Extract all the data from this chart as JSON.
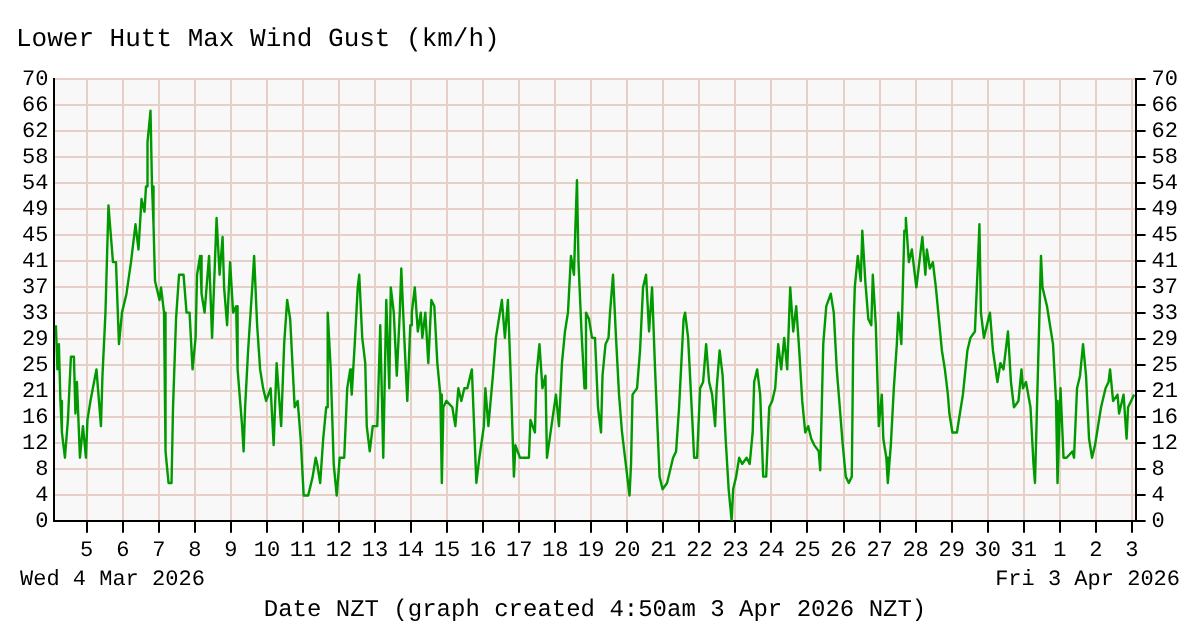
{
  "chart_data": {
    "type": "line",
    "title": "Lower Hutt Max Wind Gust (km/h)",
    "xlabel": "Date NZT (graph created 4:50am 3 Apr 2026 NZT)",
    "annotations": [
      "Wed 4 Mar 2026",
      "Fri 3 Apr 2026"
    ],
    "xlim": [
      "2026-03-04T02:30",
      "2026-04-03T02:30"
    ],
    "xticks": [
      {
        "value": "2026-03-05",
        "label": "5"
      },
      {
        "value": "2026-03-06",
        "label": "6"
      },
      {
        "value": "2026-03-07",
        "label": "7"
      },
      {
        "value": "2026-03-08",
        "label": "8"
      },
      {
        "value": "2026-03-09",
        "label": "9"
      },
      {
        "value": "2026-03-10",
        "label": "10"
      },
      {
        "value": "2026-03-11",
        "label": "11"
      },
      {
        "value": "2026-03-12",
        "label": "12"
      },
      {
        "value": "2026-03-13",
        "label": "13"
      },
      {
        "value": "2026-03-14",
        "label": "14"
      },
      {
        "value": "2026-03-15",
        "label": "15"
      },
      {
        "value": "2026-03-16",
        "label": "16"
      },
      {
        "value": "2026-03-17",
        "label": "17"
      },
      {
        "value": "2026-03-18",
        "label": "18"
      },
      {
        "value": "2026-03-19",
        "label": "19"
      },
      {
        "value": "2026-03-20",
        "label": "20"
      },
      {
        "value": "2026-03-21",
        "label": "21"
      },
      {
        "value": "2026-03-22",
        "label": "22"
      },
      {
        "value": "2026-03-23",
        "label": "23"
      },
      {
        "value": "2026-03-24",
        "label": "24"
      },
      {
        "value": "2026-03-25",
        "label": "25"
      },
      {
        "value": "2026-03-26",
        "label": "26"
      },
      {
        "value": "2026-03-27",
        "label": "27"
      },
      {
        "value": "2026-03-28",
        "label": "28"
      },
      {
        "value": "2026-03-29",
        "label": "29"
      },
      {
        "value": "2026-03-30",
        "label": "30"
      },
      {
        "value": "2026-03-31",
        "label": "31"
      },
      {
        "value": "2026-04-01",
        "label": "1"
      },
      {
        "value": "2026-04-02",
        "label": "2"
      },
      {
        "value": "2026-04-03",
        "label": "3"
      }
    ],
    "ylim": [
      0,
      70
    ],
    "yticks": [
      0,
      {
        "value": 4.12,
        "label": "4"
      },
      {
        "value": 8.24,
        "label": "8"
      },
      {
        "value": 12.35,
        "label": "12"
      },
      {
        "value": 16.47,
        "label": "16"
      },
      {
        "value": 20.59,
        "label": "21"
      },
      {
        "value": 24.71,
        "label": "25"
      },
      {
        "value": 28.82,
        "label": "29"
      },
      {
        "value": 32.94,
        "label": "33"
      },
      {
        "value": 37.06,
        "label": "37"
      },
      {
        "value": 41.18,
        "label": "41"
      },
      {
        "value": 45.29,
        "label": "45"
      },
      {
        "value": 49.41,
        "label": "49"
      },
      {
        "value": 53.53,
        "label": "54"
      },
      {
        "value": 57.65,
        "label": "58"
      },
      {
        "value": 61.76,
        "label": "62"
      },
      {
        "value": 65.88,
        "label": "66"
      },
      70
    ],
    "y2lim": [
      0,
      70
    ],
    "y2ticks": [
      0,
      {
        "value": 4.12,
        "label": "4"
      },
      {
        "value": 8.24,
        "label": "8"
      },
      {
        "value": 12.35,
        "label": "12"
      },
      {
        "value": 16.47,
        "label": "16"
      },
      {
        "value": 20.59,
        "label": "21"
      },
      {
        "value": 24.71,
        "label": "25"
      },
      {
        "value": 28.82,
        "label": "29"
      },
      {
        "value": 32.94,
        "label": "33"
      },
      {
        "value": 37.06,
        "label": "37"
      },
      {
        "value": 41.18,
        "label": "41"
      },
      {
        "value": 45.29,
        "label": "45"
      },
      {
        "value": 49.41,
        "label": "49"
      },
      {
        "value": 53.53,
        "label": "54"
      },
      {
        "value": 57.65,
        "label": "58"
      },
      {
        "value": 61.76,
        "label": "62"
      },
      {
        "value": 65.88,
        "label": "66"
      },
      70
    ],
    "grid": true,
    "marker": "none",
    "series": [
      {
        "color": "#009900",
        "x": [
          "2026-03-04T03:30",
          "2026-03-04T04:30",
          "2026-03-04T05:30",
          "2026-03-04T06:30",
          "2026-03-04T07:30",
          "2026-03-04T09:30",
          "2026-03-04T11:30",
          "2026-03-04T13:30",
          "2026-03-04T15:30",
          "2026-03-04T16:30",
          "2026-03-04T17:30",
          "2026-03-04T19:30",
          "2026-03-04T21:30",
          "2026-03-04T23:30",
          "2026-03-05T00:30",
          "2026-03-05T02:30",
          "2026-03-05T06:30",
          "2026-03-05T09:30",
          "2026-03-05T10:30",
          "2026-03-05T12:30",
          "2026-03-05T14:30",
          "2026-03-05T17:30",
          "2026-03-05T19:30",
          "2026-03-05T21:30",
          "2026-03-05T23:30",
          "2026-03-06T02:30",
          "2026-03-06T05:30",
          "2026-03-06T08:30",
          "2026-03-06T10:30",
          "2026-03-06T12:30",
          "2026-03-06T14:30",
          "2026-03-06T15:30",
          "2026-03-06T16:30",
          "2026-03-06T18:30",
          "2026-03-06T19:30",
          "2026-03-06T20:30",
          "2026-03-06T21:30",
          "2026-03-07T00:30",
          "2026-03-07T01:30",
          "2026-03-07T03:30",
          "2026-03-07T04:30",
          "2026-03-07T06:30",
          "2026-03-07T08:30",
          "2026-03-07T09:30",
          "2026-03-07T11:30",
          "2026-03-07T13:30",
          "2026-03-07T16:30",
          "2026-03-07T18:30",
          "2026-03-07T20:30",
          "2026-03-07T22:30",
          "2026-03-08T00:30",
          "2026-03-08T01:30",
          "2026-03-08T03:30",
          "2026-03-08T04:30",
          "2026-03-08T06:30",
          "2026-03-08T09:30",
          "2026-03-08T11:30",
          "2026-03-08T14:30",
          "2026-03-08T16:30",
          "2026-03-08T18:30",
          "2026-03-08T19:30",
          "2026-03-08T21:30",
          "2026-03-08T23:30",
          "2026-03-09T01:30",
          "2026-03-09T03:30",
          "2026-03-09T04:30",
          "2026-03-09T07:30",
          "2026-03-09T08:30",
          "2026-03-09T09:30",
          "2026-03-09T11:30",
          "2026-03-09T14:30",
          "2026-03-09T15:30",
          "2026-03-09T17:30",
          "2026-03-09T19:30",
          "2026-03-09T21:30",
          "2026-03-09T23:30",
          "2026-03-10T02:30",
          "2026-03-10T04:30",
          "2026-03-10T06:30",
          "2026-03-10T09:30",
          "2026-03-10T11:30",
          "2026-03-10T13:30",
          "2026-03-10T15:30",
          "2026-03-10T18:30",
          "2026-03-10T20:30",
          "2026-03-10T22:30",
          "2026-03-11T00:30",
          "2026-03-11T03:30",
          "2026-03-11T06:30",
          "2026-03-11T08:30",
          "2026-03-11T09:30",
          "2026-03-11T11:30",
          "2026-03-11T13:30",
          "2026-03-11T15:30",
          "2026-03-11T16:30",
          "2026-03-11T18:30",
          "2026-03-11T20:30",
          "2026-03-11T22:30",
          "2026-03-12T00:30",
          "2026-03-12T03:30",
          "2026-03-12T05:30",
          "2026-03-12T07:30",
          "2026-03-12T08:30",
          "2026-03-12T10:30",
          "2026-03-12T12:30",
          "2026-03-12T13:30",
          "2026-03-12T15:30",
          "2026-03-12T17:30",
          "2026-03-12T18:30",
          "2026-03-12T20:30",
          "2026-03-12T22:30",
          "2026-03-13T01:30",
          "2026-03-13T03:30",
          "2026-03-13T05:30",
          "2026-03-13T07:30",
          "2026-03-13T09:30",
          "2026-03-13T10:30",
          "2026-03-13T12:30",
          "2026-03-13T14:30",
          "2026-03-13T16:30",
          "2026-03-13T17:30",
          "2026-03-13T19:30",
          "2026-03-13T21:30",
          "2026-03-13T23:30",
          "2026-03-14T00:30",
          "2026-03-14T02:30",
          "2026-03-14T04:30",
          "2026-03-14T06:30",
          "2026-03-14T07:30",
          "2026-03-14T09:30",
          "2026-03-14T11:30",
          "2026-03-14T13:30",
          "2026-03-14T15:30",
          "2026-03-14T17:30",
          "2026-03-14T19:30",
          "2026-03-14T20:30",
          "2026-03-14T21:30",
          "2026-03-14T23:30",
          "2026-03-15T03:30",
          "2026-03-15T05:30",
          "2026-03-15T07:30",
          "2026-03-15T09:30",
          "2026-03-15T11:30",
          "2026-03-15T13:30",
          "2026-03-15T16:30",
          "2026-03-15T17:30",
          "2026-03-15T19:30",
          "2026-03-15T21:30",
          "2026-03-16T00:30",
          "2026-03-16T01:30",
          "2026-03-16T03:30",
          "2026-03-16T06:30",
          "2026-03-16T08:30",
          "2026-03-16T10:30",
          "2026-03-16T12:30",
          "2026-03-16T14:30",
          "2026-03-16T16:30",
          "2026-03-16T18:30",
          "2026-03-16T20:30",
          "2026-03-16T21:30",
          "2026-03-17T00:30",
          "2026-03-17T04:30",
          "2026-03-17T06:30",
          "2026-03-17T07:30",
          "2026-03-17T10:30",
          "2026-03-17T11:30",
          "2026-03-17T13:30",
          "2026-03-17T15:30",
          "2026-03-17T17:30",
          "2026-03-17T18:30",
          "2026-03-17T21:30",
          "2026-03-18T00:30",
          "2026-03-18T02:30",
          "2026-03-18T04:30",
          "2026-03-18T06:30",
          "2026-03-18T08:30",
          "2026-03-18T10:30",
          "2026-03-18T12:30",
          "2026-03-18T13:30",
          "2026-03-18T14:30",
          "2026-03-18T15:30",
          "2026-03-18T17:30",
          "2026-03-18T19:30",
          "2026-03-18T20:30",
          "2026-03-18T22:30",
          "2026-03-19T00:30",
          "2026-03-19T02:30",
          "2026-03-19T04:30",
          "2026-03-19T06:30",
          "2026-03-19T07:30",
          "2026-03-19T09:30",
          "2026-03-19T11:30",
          "2026-03-19T12:30",
          "2026-03-19T14:30",
          "2026-03-19T16:30",
          "2026-03-19T18:30",
          "2026-03-19T20:30",
          "2026-03-19T22:30",
          "2026-03-20T01:30",
          "2026-03-20T02:30",
          "2026-03-20T03:30",
          "2026-03-20T06:30",
          "2026-03-20T08:30",
          "2026-03-20T10:30",
          "2026-03-20T12:30",
          "2026-03-20T14:30",
          "2026-03-20T16:30",
          "2026-03-20T18:30",
          "2026-03-20T21:30",
          "2026-03-20T23:30",
          "2026-03-21T02:30",
          "2026-03-21T06:30",
          "2026-03-21T08:30",
          "2026-03-21T10:30",
          "2026-03-21T13:30",
          "2026-03-21T14:30",
          "2026-03-21T16:30",
          "2026-03-21T19:30",
          "2026-03-21T20:30",
          "2026-03-21T22:30",
          "2026-03-22T00:30",
          "2026-03-22T02:30",
          "2026-03-22T04:30",
          "2026-03-22T06:30",
          "2026-03-22T08:30",
          "2026-03-22T10:30",
          "2026-03-22T11:30",
          "2026-03-22T13:30",
          "2026-03-22T15:30",
          "2026-03-22T17:30",
          "2026-03-22T19:30",
          "2026-03-22T21:30",
          "2026-03-22T22:30",
          "2026-03-23T00:30",
          "2026-03-23T02:30",
          "2026-03-23T04:30",
          "2026-03-23T07:30",
          "2026-03-23T09:30",
          "2026-03-23T11:30",
          "2026-03-23T12:30",
          "2026-03-23T14:30",
          "2026-03-23T16:30",
          "2026-03-23T18:30",
          "2026-03-23T20:30",
          "2026-03-23T22:30",
          "2026-03-24T00:30",
          "2026-03-24T02:30",
          "2026-03-24T04:30",
          "2026-03-24T06:30",
          "2026-03-24T08:30",
          "2026-03-24T10:30",
          "2026-03-24T12:30",
          "2026-03-24T14:30",
          "2026-03-24T16:30",
          "2026-03-24T18:30",
          "2026-03-24T20:30",
          "2026-03-24T22:30",
          "2026-03-25T00:30",
          "2026-03-25T02:30",
          "2026-03-25T04:30",
          "2026-03-25T07:30",
          "2026-03-25T08:30",
          "2026-03-25T10:30",
          "2026-03-25T12:30",
          "2026-03-25T15:30",
          "2026-03-25T17:30",
          "2026-03-25T19:30",
          "2026-03-25T21:30",
          "2026-03-25T23:30",
          "2026-03-26T01:30",
          "2026-03-26T03:30",
          "2026-03-26T05:30",
          "2026-03-26T06:30",
          "2026-03-26T07:30",
          "2026-03-26T09:30",
          "2026-03-26T11:30",
          "2026-03-26T12:30",
          "2026-03-26T14:30",
          "2026-03-26T16:30",
          "2026-03-26T18:30",
          "2026-03-26T19:30",
          "2026-03-26T21:30",
          "2026-03-26T23:30",
          "2026-03-27T01:30",
          "2026-03-27T02:30",
          "2026-03-27T04:30",
          "2026-03-27T05:30",
          "2026-03-27T07:30",
          "2026-03-27T09:30",
          "2026-03-27T11:30",
          "2026-03-27T12:30",
          "2026-03-27T14:30",
          "2026-03-27T16:30",
          "2026-03-27T17:30",
          "2026-03-27T19:30",
          "2026-03-27T21:30",
          "2026-03-27T23:30",
          "2026-03-28T00:30",
          "2026-03-28T02:30",
          "2026-03-28T04:30",
          "2026-03-28T06:30",
          "2026-03-28T07:30",
          "2026-03-28T09:30",
          "2026-03-28T11:30",
          "2026-03-28T13:30",
          "2026-03-28T15:30",
          "2026-03-28T17:30",
          "2026-03-28T19:30",
          "2026-03-28T21:30",
          "2026-03-28T22:30",
          "2026-03-29T00:30",
          "2026-03-29T03:30",
          "2026-03-29T05:30",
          "2026-03-29T07:30",
          "2026-03-29T10:30",
          "2026-03-29T12:30",
          "2026-03-29T15:30",
          "2026-03-29T17:30",
          "2026-03-29T18:30",
          "2026-03-29T19:30",
          "2026-03-29T21:30",
          "2026-03-29T23:30",
          "2026-03-30T01:30",
          "2026-03-30T03:30",
          "2026-03-30T06:30",
          "2026-03-30T08:30",
          "2026-03-30T10:30",
          "2026-03-30T13:30",
          "2026-03-30T15:30",
          "2026-03-30T17:30",
          "2026-03-30T20:30",
          "2026-03-30T22:30",
          "2026-03-30T23:30",
          "2026-03-31T01:30",
          "2026-03-31T04:30",
          "2026-03-31T06:30",
          "2026-03-31T07:30",
          "2026-03-31T09:30",
          "2026-03-31T11:30",
          "2026-03-31T12:30",
          "2026-03-31T15:30",
          "2026-03-31T17:30",
          "2026-03-31T19:30",
          "2026-03-31T21:30",
          "2026-03-31T22:30",
          "2026-04-01T00:30",
          "2026-04-01T02:30",
          "2026-04-01T04:30",
          "2026-04-01T08:30",
          "2026-04-01T09:30",
          "2026-04-01T11:30",
          "2026-04-01T13:30",
          "2026-04-01T15:30",
          "2026-04-01T17:30",
          "2026-04-01T19:30",
          "2026-04-01T21:30",
          "2026-04-01T23:30",
          "2026-04-02T01:30",
          "2026-04-02T03:30",
          "2026-04-02T06:30",
          "2026-04-02T08:30",
          "2026-04-02T09:30",
          "2026-04-02T11:30",
          "2026-04-02T14:30",
          "2026-04-02T15:30",
          "2026-04-02T18:30",
          "2026-04-02T20:30",
          "2026-04-02T21:30",
          "2026-04-02T23:30",
          "2026-04-03T01:30"
        ],
        "values": [
          31,
          24,
          28,
          19,
          14,
          10,
          16,
          26,
          26,
          17,
          22,
          10,
          15,
          10,
          16,
          19,
          24,
          15,
          23,
          33,
          50,
          41,
          41,
          28,
          33,
          36,
          41,
          47,
          43,
          51,
          49,
          53,
          60,
          65,
          53,
          47,
          38,
          35,
          37,
          33,
          11,
          6,
          6,
          18,
          32,
          39,
          39,
          33,
          33,
          24,
          29,
          39,
          42,
          36,
          33,
          42,
          29,
          48,
          39,
          45,
          37,
          31,
          41,
          33,
          34,
          24,
          15,
          11,
          18,
          27,
          38,
          42,
          31,
          24,
          21,
          19,
          21,
          12,
          25,
          15,
          28,
          35,
          32,
          18,
          19,
          13,
          4,
          4,
          7,
          10,
          9,
          6,
          13,
          18,
          33,
          24,
          9,
          4,
          10,
          10,
          21,
          24,
          20,
          28,
          37,
          39,
          29,
          25,
          15,
          11,
          15,
          15,
          31,
          10,
          35,
          21,
          37,
          33,
          23,
          33,
          40,
          29,
          19,
          31,
          33,
          37,
          30,
          33,
          29,
          33,
          25,
          35,
          34,
          25,
          20,
          6,
          18,
          19,
          18,
          15,
          21,
          19,
          21,
          21,
          24,
          18,
          6,
          10,
          15,
          21,
          15,
          23,
          29,
          32,
          35,
          29,
          35,
          22,
          7,
          12,
          10,
          10,
          10,
          16,
          14,
          23,
          28,
          21,
          23,
          10,
          15,
          20,
          15,
          25,
          30,
          33,
          42,
          39,
          47,
          54,
          41,
          30,
          21,
          33,
          32,
          29,
          29,
          18,
          14,
          23,
          28,
          29,
          33,
          39,
          29,
          20,
          14,
          10,
          4,
          9,
          20,
          21,
          27,
          37,
          39,
          30,
          37,
          24,
          7,
          5,
          6,
          10,
          11,
          18,
          32,
          33,
          29,
          15,
          10,
          10,
          21,
          22,
          28,
          22,
          20,
          15,
          21,
          27,
          23,
          13,
          5,
          0,
          5,
          7,
          10,
          9,
          10,
          9,
          14,
          22,
          24,
          20,
          7,
          7,
          18,
          19,
          21,
          28,
          24,
          29,
          24,
          37,
          30,
          34,
          27,
          19,
          14,
          15,
          13,
          12,
          11,
          8,
          28,
          34,
          36,
          33,
          24,
          18,
          12,
          7,
          6,
          7,
          29,
          37,
          42,
          38,
          46,
          38,
          32,
          31,
          39,
          31,
          15,
          20,
          13,
          10,
          6,
          12,
          21,
          28,
          33,
          28,
          46,
          48,
          41,
          43,
          39,
          37,
          41,
          45,
          39,
          43,
          40,
          41,
          37,
          32,
          27,
          24,
          20,
          17,
          14,
          14,
          17,
          20,
          27,
          29,
          30,
          41,
          47,
          33,
          29,
          31,
          33,
          27,
          22,
          25,
          24,
          30,
          22,
          18,
          19,
          24,
          21,
          22,
          18,
          9,
          6,
          24,
          42,
          37,
          34,
          31,
          28,
          19,
          6,
          21,
          10,
          10,
          11,
          10,
          21,
          23,
          28,
          23,
          13,
          10,
          12,
          15,
          18,
          21,
          22,
          24,
          19,
          20,
          17,
          20,
          13,
          18,
          19,
          20
        ]
      }
    ]
  }
}
